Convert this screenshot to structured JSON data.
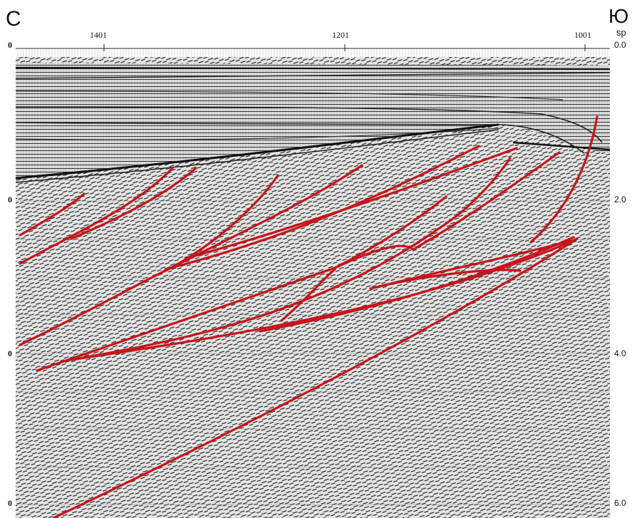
{
  "direction": {
    "left": "С",
    "right": "Ю"
  },
  "axis": {
    "shotpoint_label": "sp",
    "shotpoints": [
      "1401",
      "1201",
      "1001"
    ],
    "time_ticks": [
      "0.0",
      "2.0",
      "4.0",
      "6.0"
    ],
    "left_ticks": [
      "0",
      "0",
      "0",
      "0"
    ]
  },
  "colors": {
    "fault": "#c8151b",
    "trace": "#1a1a1a",
    "background": "#dcdcdc"
  }
}
